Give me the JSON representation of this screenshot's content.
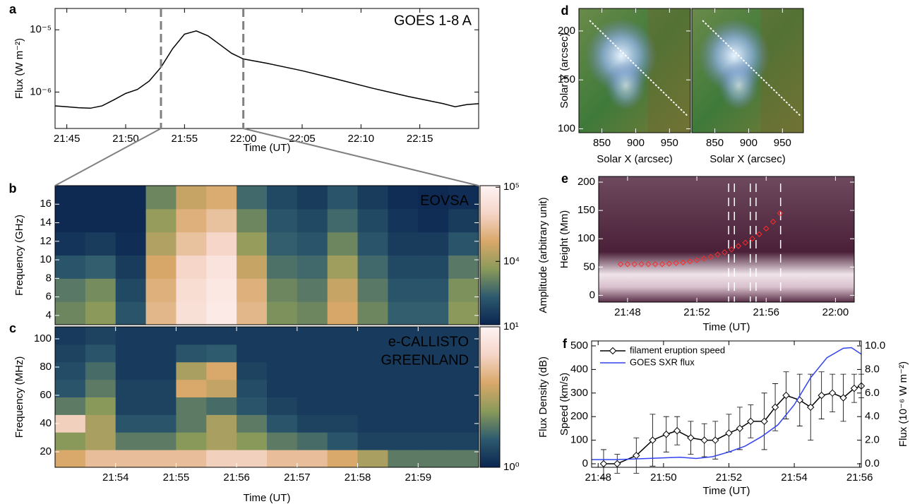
{
  "chart_data": [
    {
      "type": "line",
      "label": "a",
      "title": "GOES 1-8 A",
      "xlabel": "Time (UT)",
      "ylabel": "Flux (W m⁻²)",
      "x": [
        "21:44",
        "21:45",
        "21:46",
        "21:47",
        "21:48",
        "21:49",
        "21:50",
        "21:51",
        "21:52",
        "21:53",
        "21:54",
        "21:55",
        "21:56",
        "21:57",
        "21:58",
        "21:59",
        "22:00",
        "22:02",
        "22:05",
        "22:08",
        "22:11",
        "22:14",
        "22:17",
        "22:18",
        "22:19",
        "22:20"
      ],
      "values": [
        6e-07,
        5.8e-07,
        5.6e-07,
        5.5e-07,
        6e-07,
        7.5e-07,
        9.5e-07,
        1.1e-06,
        1.5e-06,
        2.5e-06,
        5e-06,
        8.5e-06,
        9.6e-06,
        8e-06,
        5.8e-06,
        4.2e-06,
        3.4e-06,
        2.9e-06,
        2.2e-06,
        1.6e-06,
        1.15e-06,
        8.5e-07,
        6.5e-07,
        5.8e-07,
        6.3e-07,
        6.5e-07
      ],
      "color": "#000000",
      "xlim": [
        "21:44",
        "22:20"
      ],
      "xticks": [
        "21:45",
        "21:50",
        "21:55",
        "22:00",
        "22:05",
        "22:10",
        "22:15"
      ],
      "ylog": true,
      "ylim": [
        2.6e-07,
        2.2e-05
      ],
      "yticks": [
        {
          "value": 1e-06,
          "label": "10⁻⁶"
        },
        {
          "value": 1e-05,
          "label": "10⁻⁵"
        }
      ]
    },
    {
      "type": "heatmap",
      "label": "b",
      "title": "EOVSA",
      "title_color": "#ffffff",
      "ylabel": "Frequency (GHz)",
      "xlim": [
        "21:53",
        "22:00"
      ],
      "ylim": [
        3,
        18
      ],
      "yticks": [
        4,
        6,
        8,
        10,
        12,
        14,
        16
      ],
      "z": [
        [
          6000,
          8000,
          3000,
          25000,
          60000,
          80000,
          25000,
          7000,
          6000,
          18000,
          6000,
          3500,
          3500,
          8000
        ],
        [
          5000,
          6500,
          2500,
          22000,
          55000,
          75000,
          22000,
          6000,
          5000,
          15000,
          5000,
          3000,
          3000,
          7000
        ],
        [
          3000,
          3500,
          2000,
          18000,
          45000,
          65000,
          15000,
          4500,
          4000,
          10000,
          4000,
          2500,
          2500,
          5000
        ],
        [
          1800,
          2000,
          1600,
          12000,
          30000,
          45000,
          9000,
          3500,
          3000,
          6000,
          3000,
          2000,
          2000,
          3000
        ],
        [
          1500,
          1500,
          1500,
          9000,
          22000,
          30000,
          6000,
          3000,
          2500,
          4000,
          2500,
          1800,
          1600,
          2000
        ],
        [
          1500,
          1500,
          1500,
          6000,
          15000,
          20000,
          4000,
          2500,
          2000,
          3000,
          2000,
          1600,
          1500,
          1600
        ]
      ],
      "colormap": [
        "#0b2550",
        "#2d5a6e",
        "#8a9a5a",
        "#d9a86a",
        "#f5d5c8",
        "#fff4f4"
      ],
      "clog": true,
      "clim": [
        1400,
        105000
      ],
      "cticks": [
        {
          "value": 10000,
          "label": "10⁴"
        },
        {
          "value": 100000,
          "label": "10⁵"
        }
      ],
      "clabel": "Amplitude (arbitrary unit)"
    },
    {
      "type": "heatmap",
      "label": "c",
      "title": [
        "e-CALLISTO",
        "GREENLAND"
      ],
      "title_color": "#ffffff",
      "xlabel": "Time (UT)",
      "ylabel": "Frequency (MHz)",
      "xlim": [
        "21:53",
        "22:00"
      ],
      "xticks": [
        "21:54",
        "21:55",
        "21:56",
        "21:57",
        "21:58",
        "21:59"
      ],
      "ylim": [
        9,
        108.5
      ],
      "yticks": [
        20,
        40,
        60,
        80,
        100
      ],
      "z": [
        [
          4,
          5,
          5,
          5,
          5,
          6,
          6,
          5,
          5,
          4,
          3,
          2,
          2,
          2
        ],
        [
          2.5,
          3,
          2,
          2,
          2.5,
          3,
          2.5,
          2,
          1.8,
          1.5,
          1.3,
          1.3,
          1.3,
          1.3
        ],
        [
          6,
          3,
          1.5,
          1.5,
          2,
          3,
          2,
          1.5,
          1.3,
          1.3,
          1.2,
          1.2,
          1.2,
          1.2
        ],
        [
          2,
          2.5,
          1.3,
          1.3,
          2,
          1.8,
          1.5,
          1.3,
          1.2,
          1.2,
          1.2,
          1.2,
          1.2,
          1.2
        ],
        [
          1.5,
          2,
          1.3,
          1.3,
          4,
          3.5,
          1.4,
          1.2,
          1.2,
          1.2,
          1.2,
          1.2,
          1.2,
          1.2
        ],
        [
          1.4,
          1.8,
          1.2,
          1.2,
          3,
          4,
          1.3,
          1.2,
          1.2,
          1.2,
          1.2,
          1.2,
          1.2,
          1.2
        ],
        [
          1.3,
          1.5,
          1.2,
          1.2,
          1.5,
          1.6,
          1.2,
          1.2,
          1.2,
          1.2,
          1.2,
          1.2,
          1.2,
          1.2
        ],
        [
          1.2,
          1.3,
          1.2,
          1.2,
          1.2,
          1.2,
          1.2,
          1.2,
          1.2,
          1.2,
          1.2,
          1.2,
          1.2,
          1.2
        ]
      ],
      "colormap": [
        "#0b2550",
        "#2d5a6e",
        "#8a9a5a",
        "#d9a86a",
        "#f5d5c8",
        "#fff4f4"
      ],
      "clog": true,
      "clim": [
        1,
        10
      ],
      "cticks": [
        {
          "value": 1,
          "label": "10⁰"
        },
        {
          "value": 10,
          "label": "10¹"
        }
      ],
      "clabel": "Flux Density (dB)"
    },
    {
      "type": "image",
      "label": "d",
      "xlabel": "Solar X (arcsec)",
      "ylabel": "Solar Y (arcsec)",
      "xlim": [
        816,
        981
      ],
      "xticks": [
        850,
        900,
        950
      ],
      "ylim": [
        96,
        223
      ],
      "yticks": [
        100,
        150,
        200
      ]
    },
    {
      "type": "image",
      "xlabel": "Solar X (arcsec)",
      "xlim": [
        816,
        981
      ],
      "xticks": [
        850,
        900,
        950
      ],
      "ylim": [
        96,
        223
      ]
    },
    {
      "type": "scatter",
      "label": "e",
      "xlabel": "Time (UT)",
      "ylabel": "Height (Mm)",
      "color": "#ff2a2a",
      "x": [
        "21:47:36",
        "21:48:00",
        "21:48:24",
        "21:48:48",
        "21:49:12",
        "21:49:36",
        "21:50:00",
        "21:50:24",
        "21:50:48",
        "21:51:12",
        "21:51:36",
        "21:52:00",
        "21:52:24",
        "21:52:48",
        "21:53:12",
        "21:53:36",
        "21:54:00",
        "21:54:24",
        "21:54:48",
        "21:55:12",
        "21:55:36",
        "21:56:00",
        "21:56:24",
        "21:56:48"
      ],
      "values": [
        55,
        55,
        55,
        55,
        55,
        55,
        55,
        56,
        57,
        58,
        60,
        62,
        65,
        68,
        72,
        76,
        81,
        87,
        93,
        100,
        108,
        118,
        130,
        145
      ],
      "vlines": [
        "21:53:50",
        "21:54:10",
        "21:55:05",
        "21:55:25",
        "21:56:50"
      ],
      "xlim": [
        "21:46:20",
        "22:01:05"
      ],
      "xticks": [
        "21:48",
        "21:52",
        "21:56",
        "22:00"
      ],
      "ylim": [
        -12,
        210
      ],
      "yticks": [
        0,
        50,
        100,
        150,
        200
      ]
    },
    {
      "type": "line",
      "label": "f",
      "xlabel": "Time (UT)",
      "ylabel": "Speed (km/s)",
      "y2label": "Flux (10⁻⁶ W m⁻²)",
      "legend": "upper left",
      "series": [
        {
          "name": "filament eruption speed",
          "color": "#000000",
          "marker": "diamond",
          "x": [
            "21:48:10",
            "21:48:35",
            "21:49:10",
            "21:49:40",
            "21:50:05",
            "21:50:25",
            "21:50:50",
            "21:51:15",
            "21:51:35",
            "21:52:00",
            "21:52:20",
            "21:52:40",
            "21:53:05",
            "21:53:25",
            "21:53:45",
            "21:54:10",
            "21:54:30",
            "21:54:50",
            "21:55:10",
            "21:55:30",
            "21:55:50",
            "21:56:03"
          ],
          "values": [
            0,
            0,
            35,
            100,
            125,
            140,
            110,
            100,
            100,
            130,
            150,
            180,
            180,
            240,
            290,
            270,
            240,
            290,
            300,
            280,
            320,
            330
          ],
          "errors": [
            60,
            40,
            75,
            110,
            75,
            60,
            70,
            70,
            80,
            80,
            90,
            70,
            120,
            100,
            100,
            110,
            140,
            100,
            80,
            100,
            60,
            50
          ]
        },
        {
          "name": "GOES SXR flux",
          "color": "#3344ee",
          "axis": "y2",
          "x": [
            "21:47:48",
            "21:48:30",
            "21:49:30",
            "21:50:30",
            "21:51:00",
            "21:51:30",
            "21:52:00",
            "21:52:30",
            "21:53:00",
            "21:53:30",
            "21:54:00",
            "21:54:30",
            "21:55:00",
            "21:55:30",
            "21:55:45",
            "21:56:03"
          ],
          "values": [
            0.35,
            0.35,
            0.45,
            0.55,
            0.45,
            0.6,
            1.0,
            1.5,
            2.3,
            3.3,
            5.0,
            7.3,
            9.0,
            9.8,
            9.85,
            9.3
          ]
        }
      ],
      "xlim": [
        "21:47:48",
        "21:56:03"
      ],
      "xticks": [
        "21:48",
        "21:50",
        "21:52",
        "21:54",
        "21:56"
      ],
      "ylim": [
        -15,
        521
      ],
      "yticks": [
        0,
        100,
        200,
        300,
        400,
        500
      ],
      "y2lim": [
        -0.3,
        10.42
      ],
      "y2ticks": [
        {
          "value": 0,
          "label": "0.0"
        },
        {
          "value": 2,
          "label": "2.0"
        },
        {
          "value": 4,
          "label": "4.0"
        },
        {
          "value": 6,
          "label": "6.0"
        },
        {
          "value": 8,
          "label": "8.0"
        },
        {
          "value": 10,
          "label": "10.0"
        }
      ]
    }
  ]
}
